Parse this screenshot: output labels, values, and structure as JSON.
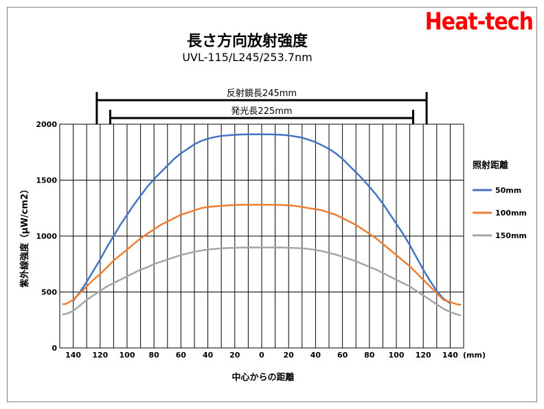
{
  "brand": "Heat-tech",
  "chart_data": {
    "type": "line",
    "title": "長さ方向放射強度",
    "subtitle": "UVL-115/L245/253.7nm",
    "xlabel": "中心からの距離",
    "x_unit": "(mm)",
    "ylabel": "紫外線強度（μW/cm2）",
    "ylim": [
      0,
      2000
    ],
    "xlim": [
      -150,
      150
    ],
    "x_ticks": [
      -140,
      -120,
      -100,
      -80,
      -60,
      -40,
      -20,
      0,
      20,
      40,
      60,
      80,
      100,
      120,
      140
    ],
    "x_tick_labels": [
      "140",
      "120",
      "100",
      "80",
      "60",
      "40",
      "20",
      "0",
      "20",
      "40",
      "60",
      "80",
      "100",
      "120",
      "140"
    ],
    "y_ticks": [
      0,
      500,
      1000,
      1500,
      2000
    ],
    "y_tick_labels": [
      "0",
      "500",
      "1000",
      "1500",
      "2000"
    ],
    "grid": "vertical lines every 10 mm, horizontal lines every 500",
    "legend_title": "照射距離",
    "legend_position": "right",
    "annotations": [
      {
        "label": "反射鏡長245mm",
        "x_range": [
          -122.5,
          122.5
        ]
      },
      {
        "label": "発光長225mm",
        "x_range": [
          -112.5,
          112.5
        ]
      }
    ],
    "x": [
      -148,
      -145,
      -140,
      -135,
      -130,
      -125,
      -120,
      -115,
      -110,
      -105,
      -100,
      -95,
      -90,
      -85,
      -80,
      -75,
      -70,
      -65,
      -60,
      -55,
      -50,
      -45,
      -40,
      -35,
      -30,
      -25,
      -20,
      -15,
      -10,
      -5,
      0,
      5,
      10,
      15,
      20,
      25,
      30,
      35,
      40,
      45,
      50,
      55,
      60,
      65,
      70,
      75,
      80,
      85,
      90,
      95,
      100,
      105,
      110,
      115,
      120,
      125,
      130,
      135,
      140,
      145,
      148
    ],
    "series": [
      {
        "name": "50mm",
        "color": "#4472c4",
        "values": [
          null,
          null,
          420,
          500,
          590,
          690,
          790,
          900,
          1000,
          1100,
          1190,
          1280,
          1360,
          1440,
          1510,
          1570,
          1630,
          1690,
          1740,
          1780,
          1820,
          1850,
          1870,
          1885,
          1895,
          1900,
          1905,
          1908,
          1910,
          1910,
          1910,
          1910,
          1908,
          1905,
          1900,
          1890,
          1880,
          1860,
          1840,
          1810,
          1780,
          1740,
          1690,
          1630,
          1570,
          1510,
          1440,
          1370,
          1290,
          1200,
          1110,
          1020,
          920,
          810,
          700,
          600,
          510,
          440,
          400,
          null,
          null
        ]
      },
      {
        "name": "100mm",
        "color": "#ed7d31",
        "values": [
          390,
          395,
          430,
          490,
          550,
          610,
          660,
          720,
          780,
          830,
          880,
          930,
          980,
          1020,
          1060,
          1100,
          1130,
          1160,
          1190,
          1210,
          1230,
          1250,
          1260,
          1265,
          1270,
          1275,
          1278,
          1280,
          1280,
          1280,
          1280,
          1280,
          1280,
          1278,
          1275,
          1270,
          1260,
          1250,
          1240,
          1230,
          1210,
          1190,
          1160,
          1130,
          1100,
          1060,
          1020,
          980,
          930,
          880,
          830,
          780,
          730,
          670,
          610,
          550,
          490,
          430,
          410,
          390,
          385
        ]
      },
      {
        "name": "150mm",
        "color": "#a5a5a5",
        "values": [
          300,
          305,
          330,
          380,
          430,
          470,
          510,
          550,
          580,
          610,
          640,
          670,
          700,
          720,
          750,
          770,
          790,
          810,
          830,
          845,
          860,
          870,
          880,
          885,
          890,
          893,
          895,
          897,
          898,
          898,
          898,
          898,
          898,
          897,
          895,
          893,
          890,
          885,
          875,
          865,
          850,
          835,
          815,
          795,
          775,
          750,
          725,
          700,
          670,
          640,
          610,
          580,
          550,
          510,
          470,
          430,
          390,
          350,
          320,
          300,
          290
        ]
      }
    ]
  }
}
